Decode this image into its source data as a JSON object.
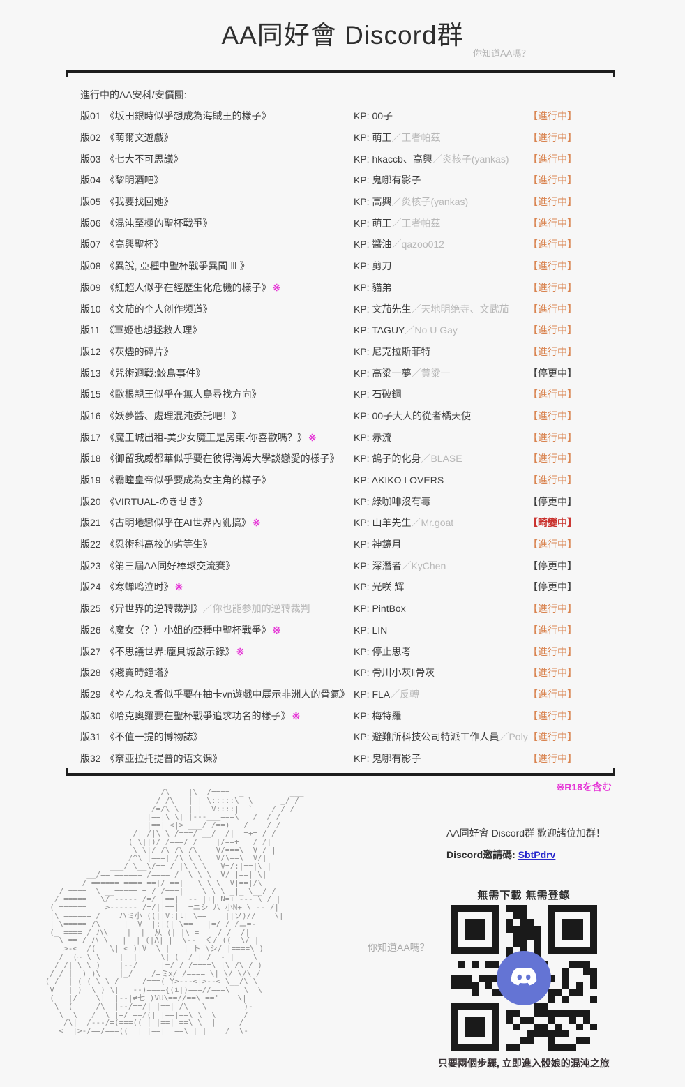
{
  "header": {
    "title": "AA同好會 Discord群",
    "subtitle": "你知道AA嗎？"
  },
  "list": {
    "heading": "進行中的AA安科/安價團:",
    "kp_prefix": "KP: ",
    "separator": "／",
    "rows": [
      {
        "ver": "版01",
        "title": "《坂田銀時似乎想成為海賊王的樣子》",
        "note": "",
        "suffix": "",
        "kp": "00子",
        "kp_sub": "",
        "status": "【進行中】",
        "status_type": "ongoing"
      },
      {
        "ver": "版02",
        "title": "《萌爾文遊戲》",
        "note": "",
        "suffix": "",
        "kp": "萌王",
        "kp_sub": "王者帕茲",
        "status": "【進行中】",
        "status_type": "ongoing"
      },
      {
        "ver": "版03",
        "title": "《七大不可思議》",
        "note": "",
        "suffix": "",
        "kp": "hkaccb、高興",
        "kp_sub": "炎核子(yankas)",
        "status": "【進行中】",
        "status_type": "ongoing"
      },
      {
        "ver": "版04",
        "title": "《黎明酒吧》",
        "note": "",
        "suffix": "",
        "kp": "鬼哪有影子",
        "kp_sub": "",
        "status": "【進行中】",
        "status_type": "ongoing"
      },
      {
        "ver": "版05",
        "title": "《我要找回她》",
        "note": "",
        "suffix": "",
        "kp": "高興",
        "kp_sub": "炎核子(yankas)",
        "status": "【進行中】",
        "status_type": "ongoing"
      },
      {
        "ver": "版06",
        "title": "《混沌至極的聖杯戰爭》",
        "note": "",
        "suffix": "",
        "kp": "萌王",
        "kp_sub": "王者帕茲",
        "status": "【進行中】",
        "status_type": "ongoing"
      },
      {
        "ver": "版07",
        "title": "《高興聖杯》",
        "note": "",
        "suffix": "",
        "kp": "醬油",
        "kp_sub": "qazoo012",
        "status": "【進行中】",
        "status_type": "ongoing"
      },
      {
        "ver": "版08",
        "title": "《異說, 亞種中聖杯戰爭異聞 Ⅲ 》",
        "note": "",
        "suffix": "",
        "kp": "剪刀",
        "kp_sub": "",
        "status": "【進行中】",
        "status_type": "ongoing"
      },
      {
        "ver": "版09",
        "title": "《紅超人似乎在經歷生化危機的樣子》",
        "note": "※",
        "suffix": "",
        "kp": "貓弟",
        "kp_sub": "",
        "status": "【進行中】",
        "status_type": "ongoing"
      },
      {
        "ver": "版10",
        "title": "《文茄的个人创作频道》",
        "note": "",
        "suffix": "",
        "kp": "文茄先生",
        "kp_sub": "天地明绝寺、文武茄",
        "status": "【進行中】",
        "status_type": "ongoing"
      },
      {
        "ver": "版11",
        "title": "《軍姬也想拯救人理》",
        "note": "",
        "suffix": "",
        "kp": "TAGUY",
        "kp_sub": "No U Gay",
        "status": "【進行中】",
        "status_type": "ongoing"
      },
      {
        "ver": "版12",
        "title": "《灰燼的碎片》",
        "note": "",
        "suffix": "",
        "kp": "尼克拉斯菲特",
        "kp_sub": "",
        "status": "【進行中】",
        "status_type": "ongoing"
      },
      {
        "ver": "版13",
        "title": "《咒術迴戰:鮫島事件》",
        "note": "",
        "suffix": "",
        "kp": "高粱一夢",
        "kp_sub": "黄粱一",
        "status": "【停更中】",
        "status_type": "paused"
      },
      {
        "ver": "版15",
        "title": "《歐根親王似乎在無人島尋找方向》",
        "note": "",
        "suffix": "",
        "kp": "石破鋼",
        "kp_sub": "",
        "status": "【進行中】",
        "status_type": "ongoing"
      },
      {
        "ver": "版16",
        "title": "《妖夢醬、處理混沌委託吧！》",
        "note": "",
        "suffix": "",
        "kp": "00子大人的從者橘天使",
        "kp_sub": "",
        "status": "【進行中】",
        "status_type": "ongoing"
      },
      {
        "ver": "版17",
        "title": "《魔王城出租-美少女魔王是房東-你喜歡嗎？》",
        "note": "※",
        "suffix": "",
        "kp": "赤流",
        "kp_sub": "",
        "status": "【進行中】",
        "status_type": "ongoing"
      },
      {
        "ver": "版18",
        "title": "《御留我威都華似乎要在彼得海姆大學談戀愛的樣子》",
        "note": "",
        "suffix": "",
        "kp": "鴿子的化身",
        "kp_sub": "BLASE",
        "status": "【進行中】",
        "status_type": "ongoing"
      },
      {
        "ver": "版19",
        "title": "《霸瞳皇帝似乎要成為女主角的樣子》",
        "note": "",
        "suffix": "",
        "kp": "AKIKO LOVERS",
        "kp_sub": "",
        "status": "【進行中】",
        "status_type": "ongoing"
      },
      {
        "ver": "版20",
        "title": "《VIRTUAL-のきせき》",
        "note": "",
        "suffix": "",
        "kp": "綠咖啡沒有毒",
        "kp_sub": "",
        "status": "【停更中】",
        "status_type": "paused"
      },
      {
        "ver": "版21",
        "title": "《古明地戀似乎在AI世界內亂搞》",
        "note": "※",
        "suffix": "",
        "kp": "山羊先生",
        "kp_sub": "Mr.goat",
        "status": "【畸變中】",
        "status_type": "mutated"
      },
      {
        "ver": "版22",
        "title": "《忍術科高校的劣等生》",
        "note": "",
        "suffix": "",
        "kp": "神鏡月",
        "kp_sub": "",
        "status": "【進行中】",
        "status_type": "ongoing"
      },
      {
        "ver": "版23",
        "title": "《第三屆AA同好棒球交流賽》",
        "note": "",
        "suffix": "",
        "kp": "深潛者",
        "kp_sub": "KyChen",
        "status": "【停更中】",
        "status_type": "paused"
      },
      {
        "ver": "版24",
        "title": "《寒蝉鸣泣时》",
        "note": "※",
        "suffix": "",
        "kp": "光咲 辉",
        "kp_sub": "",
        "status": "【停更中】",
        "status_type": "paused"
      },
      {
        "ver": "版25",
        "title": "《异世界的逆转裁判》",
        "note": "",
        "suffix": "／你也能参加的逆转裁判",
        "kp": "PintBox",
        "kp_sub": "",
        "status": "【進行中】",
        "status_type": "ongoing"
      },
      {
        "ver": "版26",
        "title": "《魔女（？）小姐的亞種中聖杯戰爭》",
        "note": "※",
        "suffix": "",
        "kp": "LIN",
        "kp_sub": "",
        "status": "【進行中】",
        "status_type": "ongoing"
      },
      {
        "ver": "版27",
        "title": "《不思議世界:龐貝城啟示錄》",
        "note": "※",
        "suffix": "",
        "kp": "停止思考",
        "kp_sub": "",
        "status": "【進行中】",
        "status_type": "ongoing"
      },
      {
        "ver": "版28",
        "title": "《賤賣時鐘塔》",
        "note": "",
        "suffix": "",
        "kp": "骨川小灰‖骨灰",
        "kp_sub": "",
        "status": "【進行中】",
        "status_type": "ongoing"
      },
      {
        "ver": "版29",
        "title": "《やんねえ香似乎要在抽卡vn遊戲中展示非洲人的骨氣》",
        "note": "",
        "suffix": "",
        "kp": "FLA",
        "kp_sub": "反轉",
        "status": "【進行中】",
        "status_type": "ongoing"
      },
      {
        "ver": "版30",
        "title": "《哈克奧羅要在聖杯戰爭追求功名的樣子》",
        "note": "※",
        "suffix": "",
        "kp": "梅特羅",
        "kp_sub": "",
        "status": "【進行中】",
        "status_type": "ongoing"
      },
      {
        "ver": "版31",
        "title": "《不值一提的博物誌》",
        "note": "",
        "suffix": "",
        "kp": "避難所科技公司特派工作人員",
        "kp_sub": "Poly",
        "status": "【進行中】",
        "status_type": "ongoing"
      },
      {
        "ver": "版32",
        "title": "《奈亚拉托提普的语文课》",
        "note": "",
        "suffix": "",
        "kp": "鬼哪有影子",
        "kp_sub": "",
        "status": "【進行中】",
        "status_type": "ongoing"
      }
    ]
  },
  "footer": {
    "r18_note": "※R18を含む",
    "qr_side_note": "你知道AA嗎？",
    "invite_heading": "AA同好會 Discord群  歡迎諸位加群！",
    "invite_code_label": "Discord邀請碼: ",
    "invite_code": "SbtPdrv",
    "qr_caption": "無需下載  無需登錄",
    "bottom_note": "只要兩個步驟, 立即進入骰娘的混沌之旅"
  },
  "colors": {
    "status_ongoing": "#d9834f",
    "status_paused": "#3a3a3a",
    "status_mutated": "#c9302c",
    "note_magenta": "#e535d6",
    "link_blue": "#2626cc",
    "muted_gray": "#b8b8b8",
    "text": "#3d3d3d",
    "discord_blue": "#6474d4"
  },
  "ascii_art": [
    "                          /\\    |\\  /====  _          ___",
    "                         / /\\   | | \\:::::\\  \\      _/ /",
    "                        /=/\\ \\  | |  V::::|  `    / / /",
    "                       |==|\\ \\| |---___===\\   /  / /",
    "                       |==| <|> ___/ /==)   /    / /",
    "                    /| /|\\ \\ /===/ __/  /|  =+= / /",
    "                   ( \\||)/ /===/ /    |/==+   / /|",
    "                    \\ \\|/ /\\ /\\ /\\    V/===\\  V / |",
    "                   /^\\ |===| /\\ \\ \\   V/\\==\\  V/|",
    "               ___/ \\__\\/== / |\\ \\ \\   V=/:|==|\\ |",
    "          __/== ====== /==== /  \\ \\ \\  V/ |==| \\|",
    "     ____/ ====== ==== ==|/ ==|   \\ \\ \\  V|==|/\\",
    "    / ====  \\ __===== = / /===|    \\ \\ \\ _|_ \\__/ /",
    "   / =====   \\/ ----- /=/ |==|  -- |+| N=+ --- \\ / |",
    "  ( ======    >------ /=/||==|  =ニシ 八 小N+ \\ -- /|",
    "  |\\ ====== /    ハミ小 ((||V:|l| \\==    ||ソ)//    \\|",
    "  | \\===== /\\     |  V  |:|(| \\==   |=/ / /ニ=-",
    "  (_ ==== / ハ\\    |  |  从 (| |\\ =    / /  /|",
    "    \\ == / ハ \\   |  | (|Λ| |  \\--  く/ ((  \\/ |",
    "     >-<  /(   \\| < )|V  \\ |   | ト \\シ/ |====\\ )",
    "    /  (~ \\ \\    |  |     \\| (  / | /  - |    \\",
    "   / /| \\ \\ )    |--/     |=/ / /====\\ |\\ /\\ / )",
    "  / / |  ) )\\    |_/    /=ミx/ /==== \\| \\/ \\/\\ /",
    " ( /  | ( ( \\ \\ /     /===( Y>---<|>--< \\__/\\ \\",
    "  V   | )  \\ ) \\|   --)===={(i|)===//===\\   \\  \\",
    "  (   |/    \\|  |--|≠七 )VU\\==//==\\ =='    \\|",
    "   \\  (     /\\  |--/==/| |==| /\\   \\        )-",
    "    \\  \\   /  \\ |=/ ==/(| |==|==\\ \\  \\      /",
    "     /\\|  /---/=(===(( | |==| ==\\ \\  |     /",
    "    <  |>-/==/===((  | |==|  ==\\ | |    /  \\-"
  ]
}
